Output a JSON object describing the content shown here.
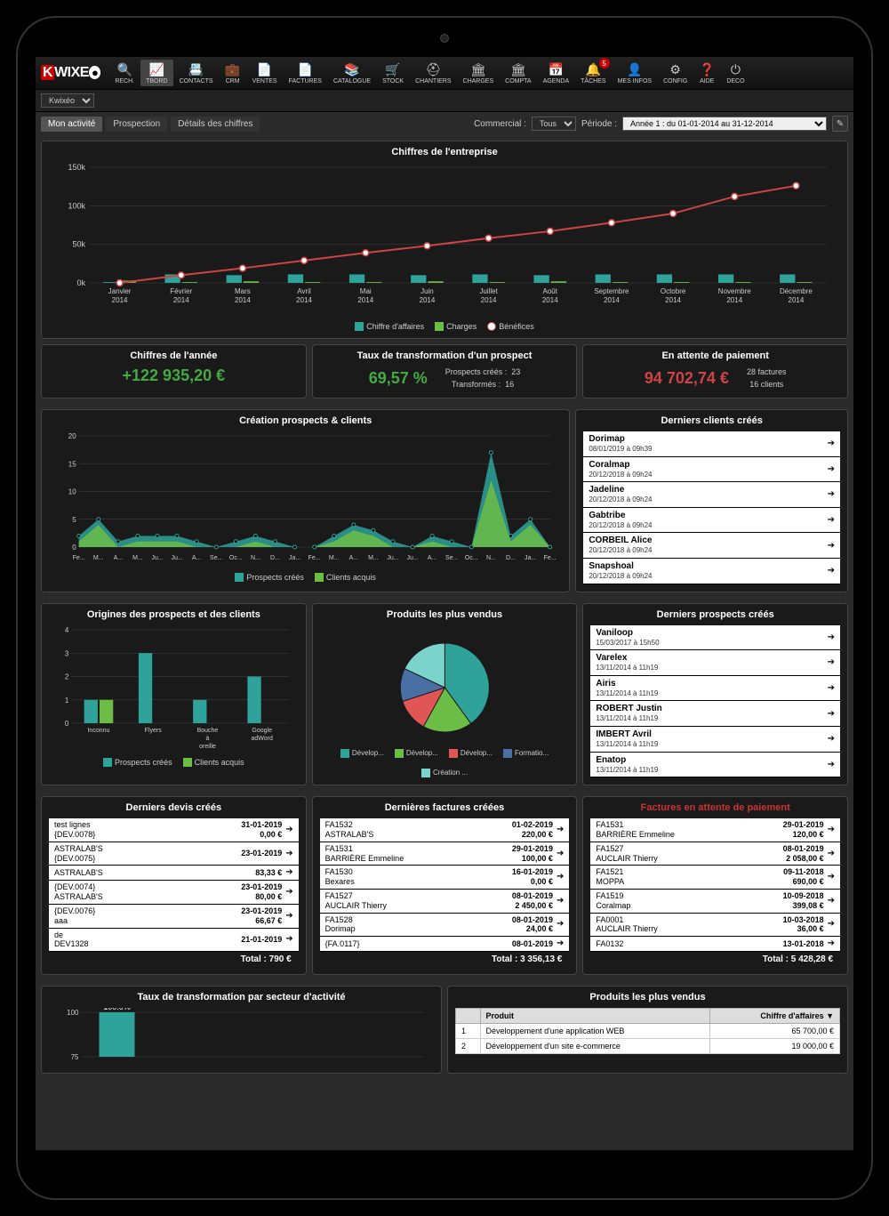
{
  "app": {
    "logo_text": "WIXE",
    "dropdown": "Kwixéo",
    "nav": [
      {
        "label": "RECH.",
        "icon": "search"
      },
      {
        "label": "TBORD",
        "icon": "chart",
        "active": true
      },
      {
        "label": "CONTACTS",
        "icon": "card"
      },
      {
        "label": "CRM",
        "icon": "brief"
      },
      {
        "label": "VENTES",
        "icon": "doc"
      },
      {
        "label": "FACTURES",
        "icon": "doc"
      },
      {
        "label": "CATALOGUE",
        "icon": "book"
      },
      {
        "label": "STOCK",
        "icon": "cart"
      },
      {
        "label": "CHANTIERS",
        "icon": "hat"
      },
      {
        "label": "CHARGES",
        "icon": "bank"
      },
      {
        "label": "COMPTA",
        "icon": "bank"
      },
      {
        "label": "AGENDA",
        "icon": "cal"
      },
      {
        "label": "TÂCHES",
        "icon": "bell",
        "badge": "5"
      },
      {
        "label": "MES INFOS",
        "icon": "user"
      },
      {
        "label": "CONFIG",
        "icon": "gear"
      },
      {
        "label": "AIDE",
        "icon": "help"
      },
      {
        "label": "DECO",
        "icon": "power"
      }
    ],
    "tabs": [
      {
        "label": "Mon activité",
        "active": true
      },
      {
        "label": "Prospection"
      },
      {
        "label": "Détails des chiffres"
      }
    ],
    "filters": {
      "commercial_label": "Commercial :",
      "commercial_value": "Tous",
      "period_label": "Période :",
      "period_value": "Année 1 : du 01-01-2014 au 31-12-2014"
    }
  },
  "main_chart": {
    "title": "Chiffres de l'entreprise",
    "categories": [
      "Janvier 2014",
      "Février 2014",
      "Mars 2014",
      "Avril 2014",
      "Mai 2014",
      "Juin 2014",
      "Juillet 2014",
      "Août 2014",
      "Septembre 2014",
      "Octobre 2014",
      "Novembre 2014",
      "Décembre 2014"
    ],
    "revenue": [
      1,
      11,
      10,
      11,
      11,
      10,
      11,
      10,
      11,
      11,
      11,
      11
    ],
    "charges": [
      3,
      1,
      2,
      1,
      1,
      2,
      1,
      2,
      1,
      1,
      1,
      1
    ],
    "benefits": [
      0,
      10,
      19,
      29,
      39,
      48,
      58,
      67,
      78,
      90,
      112,
      126
    ],
    "ylim": [
      0,
      150
    ],
    "yticks": [
      "0k",
      "50k",
      "100k",
      "150k"
    ],
    "colors": {
      "revenue": "#2fa39a",
      "charges": "#6bbd45",
      "benefits_line": "#c44",
      "benefits_marker": "#fff",
      "grid": "#444",
      "text": "#ccc"
    },
    "legend": [
      "Chiffre d'affaires",
      "Charges",
      "Bénéfices"
    ]
  },
  "kpis": {
    "year": {
      "label": "Chiffres de l'année",
      "value": "+122 935,20 €"
    },
    "rate": {
      "label": "Taux de transformation d'un prospect",
      "value": "69,57 %",
      "extra1_label": "Prospects créés :",
      "extra1_val": "23",
      "extra2_label": "Transformés :",
      "extra2_val": "16"
    },
    "pending": {
      "label": "En attente de paiement",
      "value": "94 702,74 €",
      "extra1": "28 factures",
      "extra2": "16 clients"
    }
  },
  "prospects_chart": {
    "title": "Création prospects & clients",
    "ylim": [
      0,
      20
    ],
    "yticks": [
      0,
      5,
      10,
      15,
      20
    ],
    "months": [
      "Fe...",
      "M...",
      "A...",
      "M...",
      "Ju...",
      "Ju...",
      "A...",
      "Se...",
      "Oc...",
      "N...",
      "D...",
      "Ja...",
      "Fe...",
      "M...",
      "A...",
      "M...",
      "Ju...",
      "Ju...",
      "A...",
      "Se...",
      "Oc...",
      "N...",
      "D...",
      "Ja...",
      "Fe..."
    ],
    "prospects": [
      2,
      5,
      1,
      2,
      2,
      2,
      1,
      0,
      1,
      2,
      1,
      0,
      0,
      2,
      4,
      3,
      1,
      0,
      2,
      1,
      0,
      17,
      2,
      5,
      0
    ],
    "clients": [
      1,
      4,
      0,
      1,
      1,
      1,
      0,
      0,
      0,
      1,
      0,
      0,
      0,
      1,
      3,
      2,
      0,
      0,
      1,
      0,
      0,
      12,
      1,
      4,
      0
    ],
    "colors": {
      "prospects": "#2fa39a",
      "clients": "#6bbd45",
      "grid": "#444",
      "text": "#ccc"
    },
    "legend": [
      "Prospects créés",
      "Clients acquis"
    ]
  },
  "latest_clients": {
    "title": "Derniers clients créés",
    "items": [
      {
        "name": "Dorimap",
        "date": "08/01/2019 à 09h39"
      },
      {
        "name": "Coralmap",
        "date": "20/12/2018 à 09h24"
      },
      {
        "name": "Jadeline",
        "date": "20/12/2018 à 09h24"
      },
      {
        "name": "Gabtribe",
        "date": "20/12/2018 à 09h24"
      },
      {
        "name": "CORBEIL Alice",
        "date": "20/12/2018 à 09h24"
      },
      {
        "name": "Snapshoal",
        "date": "20/12/2018 à 09h24"
      }
    ]
  },
  "origins_chart": {
    "title": "Origines des prospects et des clients",
    "categories": [
      "Inconnu",
      "Flyers",
      "Bouche à oreille",
      "Google adWord"
    ],
    "prospects": [
      1,
      3,
      1,
      2
    ],
    "clients": [
      1,
      0,
      0,
      0
    ],
    "ylim": [
      0,
      4
    ],
    "yticks": [
      0,
      1,
      2,
      3,
      4
    ],
    "colors": {
      "prospects": "#2fa39a",
      "clients": "#6bbd45",
      "grid": "#444",
      "text": "#ccc"
    },
    "legend": [
      "Prospects créés",
      "Clients acquis"
    ]
  },
  "pie_chart": {
    "title": "Produits les plus vendus",
    "slices": [
      {
        "label": "Dévelop...",
        "value": 40,
        "color": "#2fa39a"
      },
      {
        "label": "Dévelop...",
        "value": 18,
        "color": "#6bbd45"
      },
      {
        "label": "Dévelop...",
        "value": 12,
        "color": "#e05555"
      },
      {
        "label": "Formatio...",
        "value": 12,
        "color": "#4a6fa5"
      },
      {
        "label": "Création ...",
        "value": 18,
        "color": "#7ad4cc"
      }
    ]
  },
  "latest_prospects": {
    "title": "Derniers prospects créés",
    "items": [
      {
        "name": "Vaniloop",
        "date": "15/03/2017 à 15h50"
      },
      {
        "name": "Varelex",
        "date": "13/11/2014 à 11h19"
      },
      {
        "name": "Airis",
        "date": "13/11/2014 à 11h19"
      },
      {
        "name": "ROBERT Justin",
        "date": "13/11/2014 à 11h19"
      },
      {
        "name": "IMBERT Avril",
        "date": "13/11/2014 à 11h19"
      },
      {
        "name": "Enatop",
        "date": "13/11/2014 à 11h19"
      }
    ]
  },
  "devis": {
    "title": "Derniers devis créés",
    "items": [
      {
        "l1": "test lignes",
        "l2": "{DEV.0078}",
        "date": "31-01-2019",
        "amt": "0,00 €"
      },
      {
        "l1": "ASTRALAB'S",
        "l2": "{DEV.0075}",
        "date": "23-01-2019",
        "amt": ""
      },
      {
        "l1": "ASTRALAB'S",
        "l2": "",
        "date": "",
        "amt": "83,33 €"
      },
      {
        "l1": "{DEV.0074}",
        "l2": "ASTRALAB'S",
        "date": "23-01-2019",
        "amt": "80,00 €"
      },
      {
        "l1": "{DEV.0076}",
        "l2": "aaa",
        "date": "23-01-2019",
        "amt": "66,67 €"
      },
      {
        "l1": "de",
        "l2": "DEV1328",
        "date": "21-01-2019",
        "amt": ""
      }
    ],
    "total": "Total : 790 €"
  },
  "factures": {
    "title": "Dernières factures créées",
    "items": [
      {
        "l1": "FA1532",
        "l2": "ASTRALAB'S",
        "date": "01-02-2019",
        "amt": "220,00 €"
      },
      {
        "l1": "FA1531",
        "l2": "BARRIÈRE Emmeline",
        "date": "29-01-2019",
        "amt": "100,00 €"
      },
      {
        "l1": "FA1530",
        "l2": "Bexares",
        "date": "16-01-2019",
        "amt": "0,00 €"
      },
      {
        "l1": "FA1527",
        "l2": "AUCLAIR Thierry",
        "date": "08-01-2019",
        "amt": "2 450,00 €"
      },
      {
        "l1": "FA1528",
        "l2": "Dorimap",
        "date": "08-01-2019",
        "amt": "24,00 €"
      },
      {
        "l1": "{FA.0117}",
        "l2": "",
        "date": "08-01-2019",
        "amt": ""
      }
    ],
    "total": "Total : 3 356,13 €"
  },
  "pending_invoices": {
    "title": "Factures en attente de paiement",
    "items": [
      {
        "l1": "FA1531",
        "l2": "BARRIÈRE Emmeline",
        "date": "29-01-2019",
        "amt": "120,00 €"
      },
      {
        "l1": "FA1527",
        "l2": "AUCLAIR Thierry",
        "date": "08-01-2019",
        "amt": "2 058,00 €"
      },
      {
        "l1": "FA1521",
        "l2": "MOPPA",
        "date": "09-11-2018",
        "amt": "690,00 €"
      },
      {
        "l1": "FA1519",
        "l2": "Coralmap",
        "date": "10-09-2018",
        "amt": "399,08 €"
      },
      {
        "l1": "FA0001",
        "l2": "AUCLAIR Thierry",
        "date": "10-03-2018",
        "amt": "36,00 €"
      },
      {
        "l1": "FA0132",
        "l2": "",
        "date": "13-01-2018",
        "amt": ""
      }
    ],
    "total": "Total : 5 428,28 €"
  },
  "sector_chart": {
    "title": "Taux de transformation par secteur d'activité",
    "value_label": "100.0%",
    "ylim": [
      75,
      100
    ],
    "yticks": [
      75,
      100
    ],
    "bar_color": "#2fa39a"
  },
  "products_table": {
    "title": "Produits les plus vendus",
    "columns": [
      "",
      "Produit",
      "Chiffre d'affaires"
    ],
    "rows": [
      [
        "1",
        "Développement d'une application WEB",
        "65 700,00 €"
      ],
      [
        "2",
        "Développement d'un site e-commerce",
        "19 000,00 €"
      ]
    ]
  }
}
